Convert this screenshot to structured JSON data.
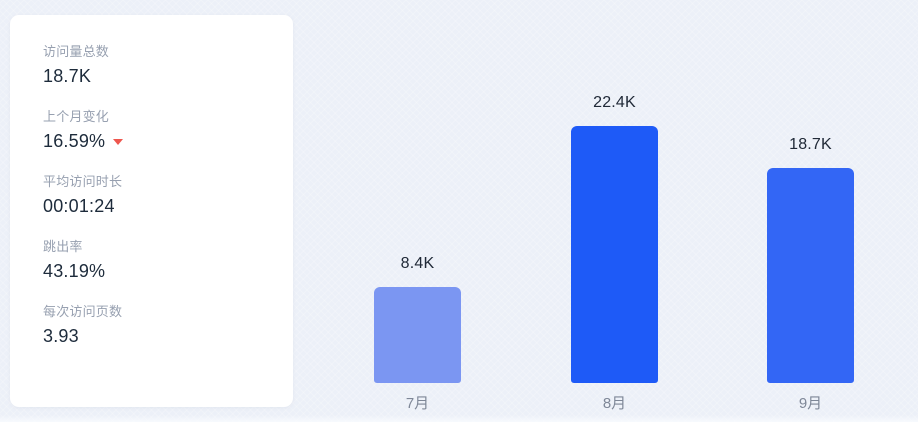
{
  "app": {
    "background_color": "#ECF0F8"
  },
  "stats_card": {
    "items": [
      {
        "label": "访问量总数",
        "value": "18.7K"
      },
      {
        "label": "上个月变化",
        "value": "16.59%",
        "trend": "down"
      },
      {
        "label": "平均访问时长",
        "value": "00:01:24"
      },
      {
        "label": "跳出率",
        "value": "43.19%"
      },
      {
        "label": "每次访问页数",
        "value": "3.93"
      }
    ],
    "trend_down_color": "#EE564E"
  },
  "chart_data": {
    "type": "bar",
    "categories": [
      "7月",
      "8月",
      "9月"
    ],
    "values": [
      8400,
      22400,
      18700
    ],
    "value_labels": [
      "8.4K",
      "22.4K",
      "18.7K"
    ],
    "bar_colors": [
      "#7B96F2",
      "#1E5AF7",
      "#3366F5"
    ],
    "title": "",
    "xlabel": "",
    "ylabel": "",
    "ylim": [
      0,
      22400
    ],
    "grid": false,
    "legend": false,
    "axis_lines": false
  }
}
